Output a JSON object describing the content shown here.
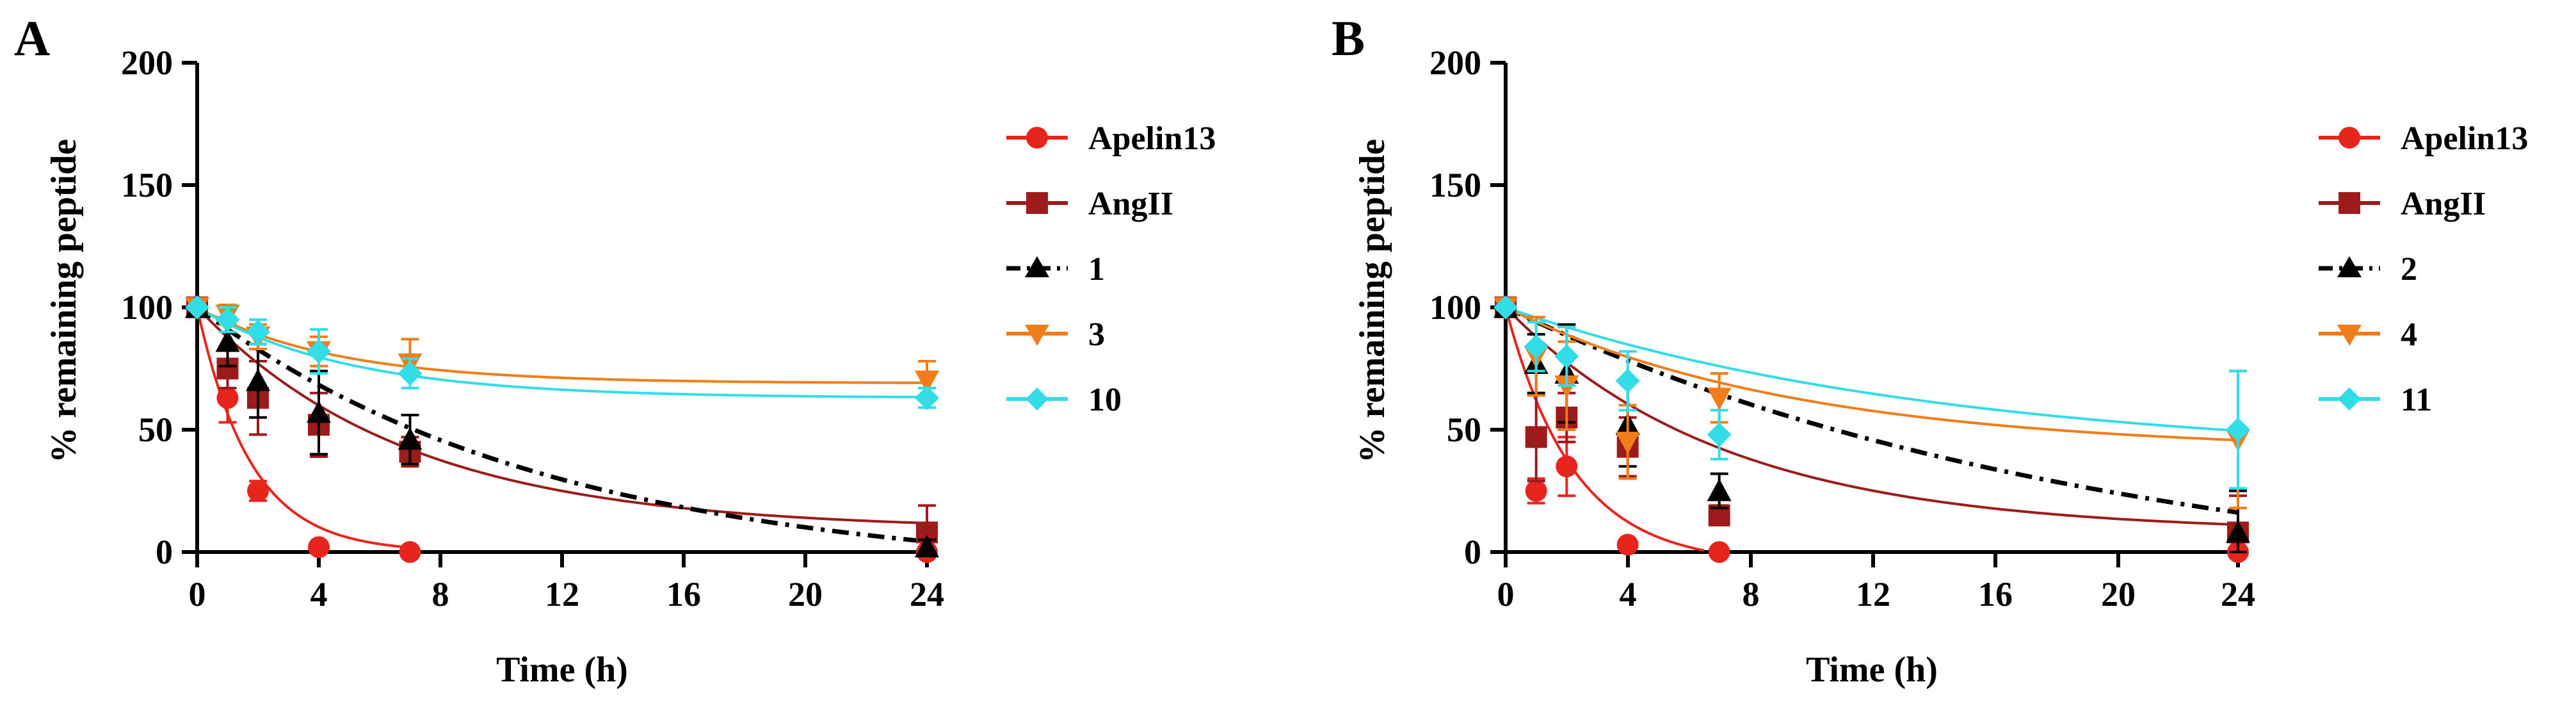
{
  "figure": {
    "colors": {
      "Apelin13": "#e8251c",
      "AngII": "#9e1b1b",
      "black": "#000000",
      "orange": "#f07d1a",
      "cyan": "#33dde8"
    }
  },
  "chart_data": [
    {
      "panel": "A",
      "type": "line",
      "xlabel": "Time (h)",
      "ylabel": "% remaining peptide",
      "xlim": [
        0,
        24
      ],
      "ylim": [
        0,
        200
      ],
      "xticks": [
        "0",
        "4",
        "8",
        "12",
        "16",
        "20",
        "24"
      ],
      "yticks": [
        "0",
        "50",
        "100",
        "150",
        "200"
      ],
      "series": [
        {
          "name": "Apelin13",
          "color": "#e8251c",
          "marker": "circle",
          "dash": "solid",
          "x": [
            0,
            1,
            2,
            4,
            7,
            24
          ],
          "y": [
            100,
            63,
            25,
            2,
            0,
            0
          ],
          "err": [
            0,
            10,
            4,
            1,
            0,
            0
          ],
          "fit": {
            "plateau": 0,
            "rate": 0.57,
            "xmax": 7
          }
        },
        {
          "name": "AngII",
          "color": "#9e1b1b",
          "marker": "square",
          "dash": "solid",
          "x": [
            0,
            1,
            2,
            4,
            7,
            24
          ],
          "y": [
            100,
            75,
            63,
            52,
            41,
            8
          ],
          "err": [
            0,
            8,
            15,
            13,
            6,
            11
          ],
          "fit": {
            "plateau": 9,
            "rate": 0.145,
            "xmax": 24
          }
        },
        {
          "name": "1",
          "color": "#000000",
          "marker": "triangle-up",
          "dash": "dashdot",
          "x": [
            0,
            1,
            2,
            4,
            7,
            24
          ],
          "y": [
            100,
            86,
            70,
            57,
            46,
            2
          ],
          "err": [
            0,
            10,
            15,
            17,
            10,
            3
          ],
          "fit": {
            "plateau": -10,
            "rate": 0.085,
            "xmax": 24
          }
        },
        {
          "name": "3",
          "color": "#f07d1a",
          "marker": "triangle-down",
          "dash": "solid",
          "x": [
            0,
            1,
            2,
            4,
            7,
            24
          ],
          "y": [
            100,
            97,
            88,
            82,
            77,
            70
          ],
          "err": [
            0,
            4,
            5,
            6,
            10,
            8
          ],
          "fit": {
            "plateau": 69,
            "rate": 0.22,
            "xmax": 24
          }
        },
        {
          "name": "10",
          "color": "#33dde8",
          "marker": "diamond",
          "dash": "solid",
          "x": [
            0,
            1,
            2,
            4,
            7,
            24
          ],
          "y": [
            100,
            95,
            90,
            82,
            73,
            63
          ],
          "err": [
            0,
            5,
            5,
            9,
            6,
            4
          ],
          "fit": {
            "plateau": 63,
            "rate": 0.2,
            "xmax": 24
          }
        }
      ]
    },
    {
      "panel": "B",
      "type": "line",
      "xlabel": "Time (h)",
      "ylabel": "% remaining peptide",
      "xlim": [
        0,
        24
      ],
      "ylim": [
        0,
        200
      ],
      "xticks": [
        "0",
        "4",
        "8",
        "12",
        "16",
        "20",
        "24"
      ],
      "yticks": [
        "0",
        "50",
        "100",
        "150",
        "200"
      ],
      "series": [
        {
          "name": "Apelin13",
          "color": "#e8251c",
          "marker": "circle",
          "dash": "solid",
          "x": [
            0,
            1,
            2,
            4,
            7,
            24
          ],
          "y": [
            100,
            25,
            35,
            3,
            0,
            0
          ],
          "err": [
            0,
            5,
            12,
            1,
            0,
            0
          ],
          "fit": {
            "plateau": -5,
            "rate": 0.45,
            "xmax": 6.5
          }
        },
        {
          "name": "AngII",
          "color": "#9e1b1b",
          "marker": "square",
          "dash": "solid",
          "x": [
            0,
            1,
            2,
            4,
            7,
            24
          ],
          "y": [
            100,
            47,
            55,
            43,
            15,
            8
          ],
          "err": [
            0,
            18,
            10,
            12,
            4,
            15
          ],
          "fit": {
            "plateau": 8,
            "rate": 0.14,
            "xmax": 24
          }
        },
        {
          "name": "2",
          "color": "#000000",
          "marker": "triangle-up",
          "dash": "dashdot",
          "x": [
            0,
            1,
            2,
            4,
            7,
            24
          ],
          "y": [
            100,
            77,
            73,
            52,
            25,
            8
          ],
          "err": [
            0,
            12,
            20,
            17,
            7,
            17
          ],
          "fit": {
            "plateau": -20,
            "rate": 0.05,
            "xmax": 24
          }
        },
        {
          "name": "4",
          "color": "#f07d1a",
          "marker": "triangle-down",
          "dash": "solid",
          "x": [
            0,
            1,
            2,
            4,
            7,
            24
          ],
          "y": [
            100,
            80,
            68,
            45,
            63,
            46
          ],
          "err": [
            0,
            16,
            18,
            15,
            10,
            28
          ],
          "fit": {
            "plateau": 41,
            "rate": 0.105,
            "xmax": 24
          }
        },
        {
          "name": "11",
          "color": "#33dde8",
          "marker": "diamond",
          "dash": "solid",
          "x": [
            0,
            1,
            2,
            4,
            7,
            24
          ],
          "y": [
            100,
            84,
            80,
            70,
            48,
            50
          ],
          "err": [
            0,
            10,
            12,
            12,
            10,
            24
          ],
          "fit": {
            "plateau": 38,
            "rate": 0.07,
            "xmax": 24
          }
        }
      ]
    }
  ]
}
